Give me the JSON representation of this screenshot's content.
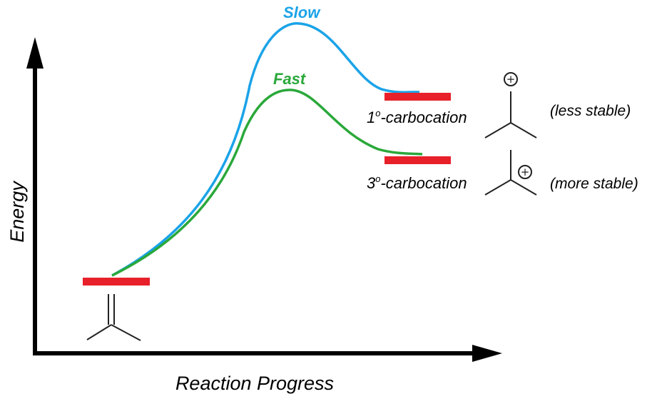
{
  "axes": {
    "x_label": "Reaction Progress",
    "y_label": "Energy"
  },
  "pathways": [
    {
      "label": "Slow",
      "color": "#1aa3e8"
    },
    {
      "label": "Fast",
      "color": "#2aa83a"
    }
  ],
  "levels": {
    "color": "#e8202a",
    "reactant": {
      "structure": "alkene-icon"
    },
    "primary": {
      "label_number": "1",
      "label_degree": "o",
      "label_text": "-carbocation",
      "charge": "+",
      "stability": "(less stable)",
      "structure": "primary-carbocation-icon"
    },
    "tertiary": {
      "label_number": "3",
      "label_degree": "o",
      "label_text": "-carbocation",
      "charge": "+",
      "stability": "(more stable)",
      "structure": "tertiary-carbocation-icon"
    }
  }
}
